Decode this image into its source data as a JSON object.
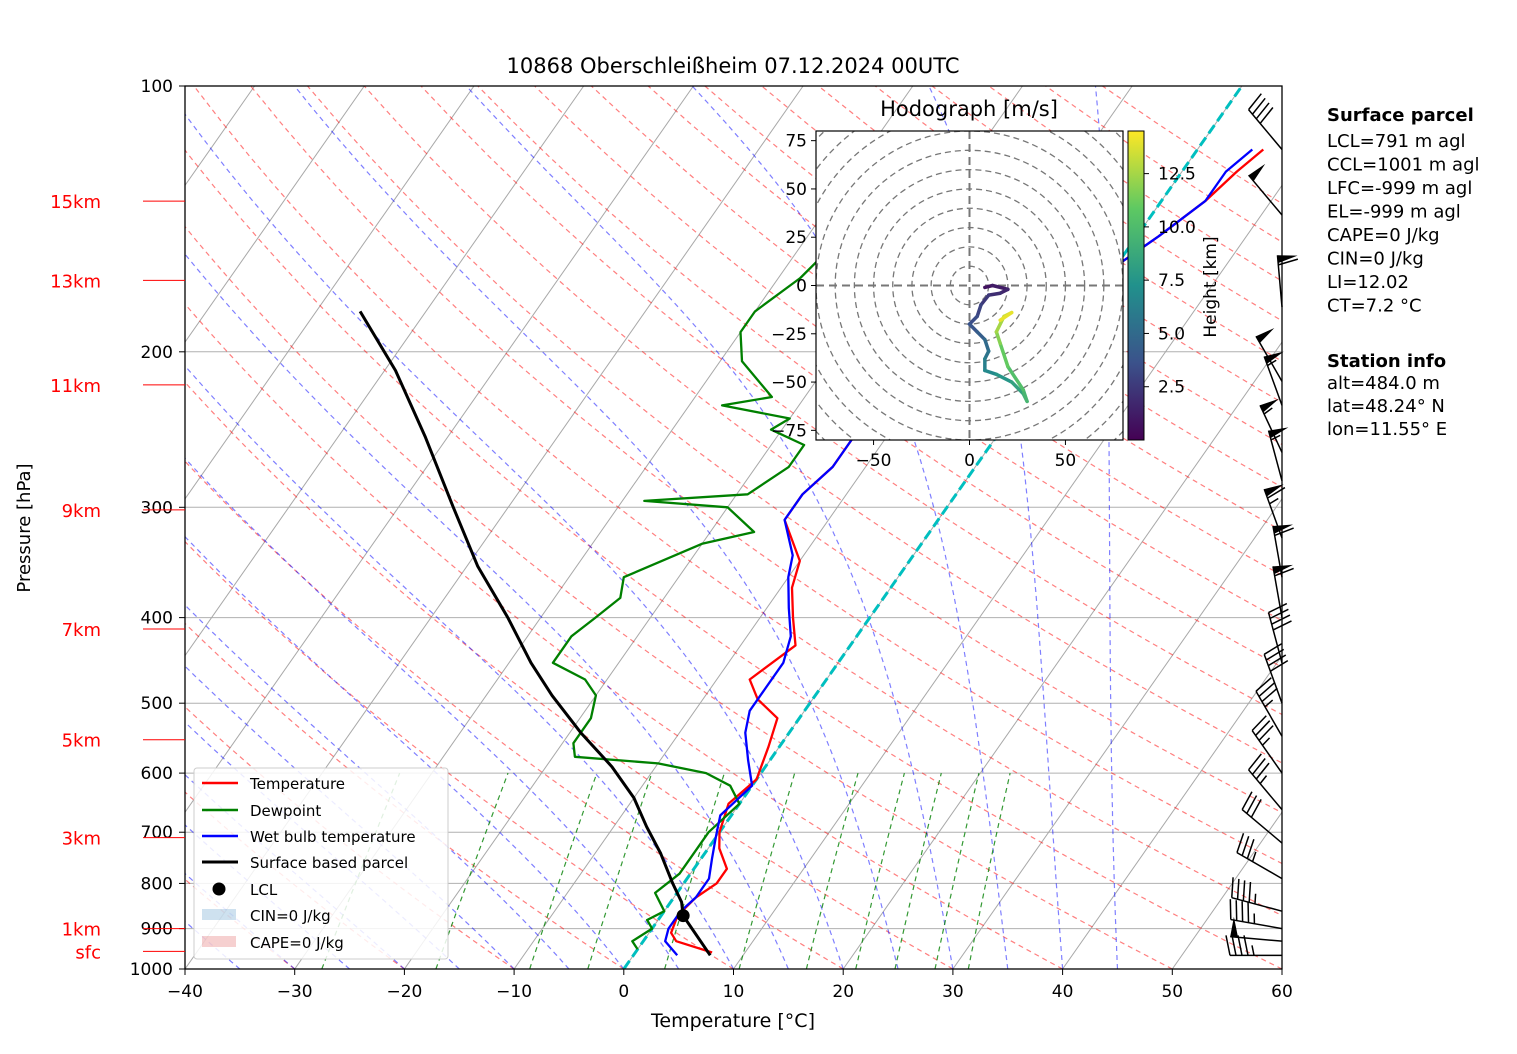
{
  "chart_data": {
    "type": "skew-t log-p",
    "title": "10868 Oberschleißheim 07.12.2024 00UTC",
    "xlabel": "Temperature [°C]",
    "ylabel": "Pressure [hPa]",
    "xlim": [
      -40,
      60
    ],
    "ylim_hpa": [
      1000,
      100
    ],
    "x_ticks": [
      -40,
      -30,
      -20,
      -10,
      0,
      10,
      20,
      30,
      40,
      50,
      60
    ],
    "y_ticks": [
      100,
      200,
      300,
      400,
      500,
      600,
      700,
      800,
      900,
      1000
    ],
    "grid": true,
    "height_labels": [
      {
        "label": "15km",
        "p": 135
      },
      {
        "label": "13km",
        "p": 166
      },
      {
        "label": "11km",
        "p": 218
      },
      {
        "label": "9km",
        "p": 302
      },
      {
        "label": "7km",
        "p": 412
      },
      {
        "label": "5km",
        "p": 550
      },
      {
        "label": "3km",
        "p": 710
      },
      {
        "label": "1km",
        "p": 900
      },
      {
        "label": "sfc",
        "p": 955
      }
    ],
    "series": [
      {
        "name": "Temperature",
        "color": "#ff0000",
        "points": [
          [
            7,
            958
          ],
          [
            3,
            930
          ],
          [
            2,
            910
          ],
          [
            1.5,
            870
          ],
          [
            2,
            830
          ],
          [
            3,
            800
          ],
          [
            3,
            770
          ],
          [
            1,
            730
          ],
          [
            0,
            700
          ],
          [
            -1,
            650
          ],
          [
            0,
            610
          ],
          [
            -1,
            560
          ],
          [
            -2,
            520
          ],
          [
            -5,
            495
          ],
          [
            -7,
            470
          ],
          [
            -5,
            430
          ],
          [
            -7,
            400
          ],
          [
            -9,
            370
          ],
          [
            -10,
            345
          ],
          [
            -14,
            310
          ],
          [
            -14,
            290
          ],
          [
            -13,
            270
          ],
          [
            -13,
            250
          ],
          [
            -9,
            235
          ],
          [
            -7,
            222
          ],
          [
            -7,
            200
          ],
          [
            -6,
            192
          ],
          [
            -3,
            182
          ],
          [
            -1,
            170
          ],
          [
            0,
            160
          ],
          [
            2,
            148
          ],
          [
            4,
            135
          ],
          [
            5,
            125
          ],
          [
            6,
            118
          ]
        ]
      },
      {
        "name": "Dewpoint",
        "color": "#008000",
        "points": [
          [
            0,
            950
          ],
          [
            -1,
            930
          ],
          [
            0,
            900
          ],
          [
            -1,
            880
          ],
          [
            0,
            860
          ],
          [
            -2,
            820
          ],
          [
            -1,
            780
          ],
          [
            -1,
            700
          ],
          [
            0,
            650
          ],
          [
            -2,
            620
          ],
          [
            -5,
            600
          ],
          [
            -10,
            585
          ],
          [
            -18,
            575
          ],
          [
            -19,
            555
          ],
          [
            -19,
            520
          ],
          [
            -20,
            490
          ],
          [
            -22,
            470
          ],
          [
            -26,
            450
          ],
          [
            -26,
            420
          ],
          [
            -25,
            400
          ],
          [
            -24,
            380
          ],
          [
            -25,
            360
          ],
          [
            -20,
            330
          ],
          [
            -16,
            320
          ],
          [
            -20,
            300
          ],
          [
            -28,
            295
          ],
          [
            -19,
            290
          ],
          [
            -17,
            270
          ],
          [
            -17,
            255
          ],
          [
            -21,
            245
          ],
          [
            -20,
            238
          ],
          [
            -27,
            230
          ],
          [
            -23,
            225
          ],
          [
            -28,
            205
          ],
          [
            -30,
            190
          ],
          [
            -30,
            180
          ],
          [
            -28,
            165
          ],
          [
            -27,
            150
          ],
          [
            -25,
            140
          ],
          [
            -23,
            128
          ],
          [
            -22,
            118
          ]
        ]
      },
      {
        "name": "Wet bulb temperature",
        "color": "#0000ff",
        "points": [
          [
            4,
            965
          ],
          [
            2,
            930
          ],
          [
            1.5,
            900
          ],
          [
            1.5,
            860
          ],
          [
            2,
            830
          ],
          [
            2,
            790
          ],
          [
            1,
            750
          ],
          [
            0,
            710
          ],
          [
            -1,
            670
          ],
          [
            0,
            620
          ],
          [
            -2,
            580
          ],
          [
            -4,
            540
          ],
          [
            -5,
            510
          ],
          [
            -5,
            480
          ],
          [
            -5,
            450
          ],
          [
            -6,
            420
          ],
          [
            -8,
            390
          ],
          [
            -10,
            360
          ],
          [
            -11,
            340
          ],
          [
            -14,
            310
          ],
          [
            -14,
            290
          ],
          [
            -13,
            270
          ],
          [
            -13,
            250
          ],
          [
            -10,
            235
          ],
          [
            -8,
            222
          ],
          [
            -7,
            200
          ],
          [
            -6,
            192
          ],
          [
            -3,
            182
          ],
          [
            -1,
            170
          ],
          [
            0,
            160
          ],
          [
            2,
            148
          ],
          [
            4,
            135
          ],
          [
            4,
            125
          ],
          [
            5,
            118
          ]
        ]
      },
      {
        "name": "Surface based parcel",
        "color": "#000000",
        "points": [
          [
            7,
            965
          ],
          [
            2,
            870
          ],
          [
            1,
            840
          ],
          [
            -1,
            800
          ],
          [
            -4,
            740
          ],
          [
            -7,
            690
          ],
          [
            -10,
            640
          ],
          [
            -14,
            590
          ],
          [
            -19,
            540
          ],
          [
            -24,
            490
          ],
          [
            -28,
            450
          ],
          [
            -33,
            400
          ],
          [
            -39,
            350
          ],
          [
            -45,
            300
          ],
          [
            -52,
            250
          ],
          [
            -59,
            210
          ],
          [
            -66,
            180
          ]
        ]
      }
    ],
    "lcl": {
      "name": "LCL",
      "t": 2,
      "p": 870
    },
    "legend": {
      "position": "lower-left",
      "entries": [
        "Temperature",
        "Dewpoint",
        "Wet bulb temperature",
        "Surface based parcel",
        "LCL",
        "CIN=0 J/kg",
        "CAPE=0 J/kg"
      ]
    },
    "hodograph": {
      "title": "Hodograph [m/s]",
      "xlim": [
        -80,
        80
      ],
      "ylim": [
        -80,
        80
      ],
      "x_ticks": [
        -50,
        0,
        50
      ],
      "y_ticks": [
        75,
        50,
        25,
        0,
        -25,
        -50,
        -75
      ],
      "rings_step": 10,
      "colorbar_label": "Height [km]",
      "colorbar_ticks": [
        2.5,
        5.0,
        7.5,
        10.0,
        12.5
      ],
      "path": [
        [
          8,
          -1,
          0.5
        ],
        [
          12,
          0,
          0.8
        ],
        [
          20,
          -2,
          1.2
        ],
        [
          16,
          -4,
          1.6
        ],
        [
          10,
          -5,
          2.0
        ],
        [
          6,
          -10,
          2.5
        ],
        [
          4,
          -16,
          3.0
        ],
        [
          0,
          -20,
          3.4
        ],
        [
          4,
          -24,
          3.8
        ],
        [
          8,
          -28,
          4.3
        ],
        [
          10,
          -34,
          5.0
        ],
        [
          8,
          -38,
          5.6
        ],
        [
          8,
          -44,
          6.2
        ],
        [
          14,
          -46,
          6.8
        ],
        [
          22,
          -50,
          7.6
        ],
        [
          28,
          -56,
          8.3
        ],
        [
          30,
          -60,
          9.0
        ],
        [
          28,
          -54,
          9.6
        ],
        [
          20,
          -42,
          10.2
        ],
        [
          16,
          -30,
          11.0
        ],
        [
          14,
          -24,
          11.8
        ],
        [
          18,
          -16,
          12.5
        ],
        [
          22,
          -14,
          13.2
        ],
        [
          16,
          -18,
          14.0
        ]
      ]
    },
    "wind_barbs": [
      {
        "p": 965,
        "dir": 270,
        "kt": 45
      },
      {
        "p": 930,
        "dir": 275,
        "kt": 50
      },
      {
        "p": 900,
        "dir": 280,
        "kt": 45
      },
      {
        "p": 860,
        "dir": 285,
        "kt": 45
      },
      {
        "p": 790,
        "dir": 300,
        "kt": 35
      },
      {
        "p": 720,
        "dir": 310,
        "kt": 30
      },
      {
        "p": 660,
        "dir": 320,
        "kt": 35
      },
      {
        "p": 600,
        "dir": 325,
        "kt": 35
      },
      {
        "p": 545,
        "dir": 330,
        "kt": 35
      },
      {
        "p": 500,
        "dir": 340,
        "kt": 40
      },
      {
        "p": 450,
        "dir": 345,
        "kt": 40
      },
      {
        "p": 400,
        "dir": 350,
        "kt": 60
      },
      {
        "p": 360,
        "dir": 350,
        "kt": 60
      },
      {
        "p": 325,
        "dir": 340,
        "kt": 65
      },
      {
        "p": 280,
        "dir": 345,
        "kt": 55
      },
      {
        "p": 260,
        "dir": 335,
        "kt": 55
      },
      {
        "p": 230,
        "dir": 340,
        "kt": 55
      },
      {
        "p": 216,
        "dir": 330,
        "kt": 50
      },
      {
        "p": 178,
        "dir": 355,
        "kt": 60
      },
      {
        "p": 140,
        "dir": 320,
        "kt": 50
      },
      {
        "p": 118,
        "dir": 320,
        "kt": 40
      }
    ],
    "info": {
      "surface_parcel": {
        "title": "Surface parcel",
        "lines": [
          "LCL=791 m agl",
          "CCL=1001 m agl",
          "LFC=-999 m agl",
          "EL=-999 m agl",
          "CAPE=0 J/kg",
          "CIN=0 J/kg",
          "LI=12.02",
          "CT=7.2 °C"
        ]
      },
      "station": {
        "title": "Station info",
        "lines": [
          "alt=484.0 m",
          "lat=48.24° N",
          "lon=11.55° E"
        ]
      }
    }
  }
}
